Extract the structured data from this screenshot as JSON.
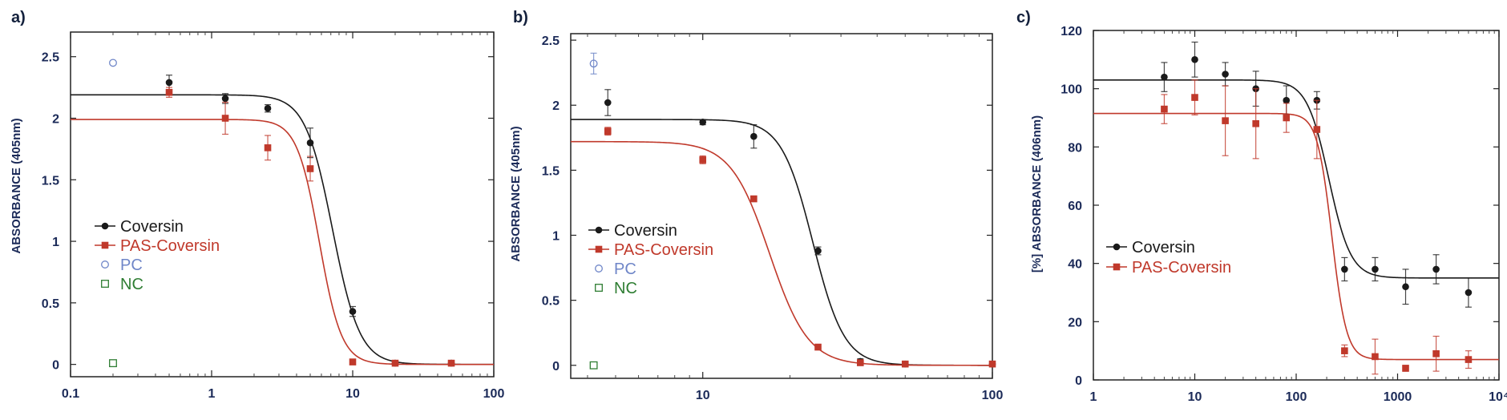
{
  "chart_data": [
    {
      "panel_label": "a)",
      "type": "scatter",
      "ylabel": "ABSORBANCE (405nm)",
      "xscale": "log",
      "xlim": [
        0.1,
        100
      ],
      "ylim": [
        -0.1,
        2.7
      ],
      "xticks": [
        0.1,
        1,
        10,
        100
      ],
      "xtick_labels": [
        "0.1",
        "1",
        "10",
        "100"
      ],
      "yticks": [
        0,
        0.5,
        1,
        1.5,
        2,
        2.5
      ],
      "ytick_labels": [
        "0",
        "0.5",
        "1",
        "1.5",
        "2",
        "2.5"
      ],
      "legend_position": "bottom-left",
      "series": [
        {
          "name": "Coversin",
          "color": "#1a1a1a",
          "marker": "circle",
          "points": [
            [
              0.5,
              2.29,
              0.06
            ],
            [
              1.25,
              2.16,
              0.04
            ],
            [
              2.5,
              2.08,
              0.03
            ],
            [
              5,
              1.8,
              0.12
            ],
            [
              10,
              0.43,
              0.04
            ],
            [
              20,
              0.01,
              0.02
            ],
            [
              50,
              0.01,
              0.02
            ]
          ],
          "fit": {
            "top": 2.19,
            "bottom": 0.0,
            "ec50": 7.2,
            "hill": 4.5
          }
        },
        {
          "name": "PAS-Coversin",
          "color": "#c0392b",
          "marker": "square",
          "points": [
            [
              0.5,
              2.21,
              0.04
            ],
            [
              1.25,
              2.0,
              0.13
            ],
            [
              2.5,
              1.76,
              0.1
            ],
            [
              5,
              1.59,
              0.1
            ],
            [
              10,
              0.02,
              0.02
            ],
            [
              20,
              0.01,
              0.02
            ],
            [
              50,
              0.01,
              0.02
            ]
          ],
          "fit": {
            "top": 1.99,
            "bottom": 0.0,
            "ec50": 5.8,
            "hill": 5.5
          }
        },
        {
          "name": "PC",
          "color": "#6f86c8",
          "marker": "open-circle",
          "points": [
            [
              0.2,
              2.45,
              0
            ]
          ]
        },
        {
          "name": "NC",
          "color": "#2e7d32",
          "marker": "open-square",
          "points": [
            [
              0.2,
              0.01,
              0
            ]
          ]
        }
      ]
    },
    {
      "panel_label": "b)",
      "type": "scatter",
      "ylabel": "ABSORBANCE (405nm)",
      "xscale": "log",
      "xlim": [
        3.5,
        100
      ],
      "ylim": [
        -0.1,
        2.55
      ],
      "xticks": [
        10,
        100
      ],
      "xtick_labels": [
        "10",
        "100"
      ],
      "yticks": [
        0,
        0.5,
        1,
        1.5,
        2,
        2.5
      ],
      "ytick_labels": [
        "0",
        "0.5",
        "1",
        "1.5",
        "2",
        "2.5"
      ],
      "legend_position": "bottom-left",
      "series": [
        {
          "name": "Coversin",
          "color": "#1a1a1a",
          "marker": "circle",
          "points": [
            [
              4.7,
              2.02,
              0.1
            ],
            [
              10,
              1.87,
              0.02
            ],
            [
              15,
              1.76,
              0.09
            ],
            [
              25,
              0.88,
              0.03
            ],
            [
              35,
              0.03,
              0.02
            ],
            [
              50,
              0.01,
              0.02
            ],
            [
              100,
              0.01,
              0.02
            ]
          ],
          "fit": {
            "top": 1.89,
            "bottom": 0.0,
            "ec50": 24,
            "hill": 8
          }
        },
        {
          "name": "PAS-Coversin",
          "color": "#c0392b",
          "marker": "square",
          "points": [
            [
              4.7,
              1.8,
              0.03
            ],
            [
              10,
              1.58,
              0.03
            ],
            [
              15,
              1.28,
              0.02
            ],
            [
              25,
              0.14,
              0.02
            ],
            [
              35,
              0.02,
              0.02
            ],
            [
              50,
              0.01,
              0.02
            ],
            [
              100,
              0.01,
              0.02
            ]
          ],
          "fit": {
            "top": 1.72,
            "bottom": 0.0,
            "ec50": 17,
            "hill": 6.5
          }
        },
        {
          "name": "PC",
          "color": "#6f86c8",
          "marker": "open-circle",
          "points": [
            [
              4.2,
              2.32,
              0.08
            ]
          ]
        },
        {
          "name": "NC",
          "color": "#2e7d32",
          "marker": "open-square",
          "points": [
            [
              4.2,
              0.0,
              0
            ]
          ]
        }
      ]
    },
    {
      "panel_label": "c)",
      "type": "scatter",
      "ylabel": "[%] ABSORBANCE (406nm)",
      "xscale": "log",
      "xlim": [
        1,
        10000
      ],
      "ylim": [
        0,
        120
      ],
      "xticks": [
        1,
        10,
        100,
        1000,
        10000
      ],
      "xtick_labels": [
        "1",
        "10",
        "100",
        "1000",
        "10⁴"
      ],
      "yticks": [
        0,
        20,
        40,
        60,
        80,
        100,
        120
      ],
      "ytick_labels": [
        "0",
        "20",
        "40",
        "60",
        "80",
        "100",
        "120"
      ],
      "legend_position": "bottom-left",
      "series": [
        {
          "name": "Coversin",
          "color": "#1a1a1a",
          "marker": "circle",
          "points": [
            [
              5,
              104,
              5
            ],
            [
              10,
              110,
              6
            ],
            [
              20,
              105,
              4
            ],
            [
              40,
              100,
              6
            ],
            [
              80,
              96,
              5
            ],
            [
              160,
              96,
              3
            ],
            [
              300,
              38,
              4
            ],
            [
              600,
              38,
              4
            ],
            [
              1200,
              32,
              6
            ],
            [
              2400,
              38,
              5
            ],
            [
              5000,
              30,
              5
            ]
          ],
          "fit": {
            "top": 103,
            "bottom": 35,
            "ec50": 210,
            "hill": 4
          }
        },
        {
          "name": "PAS-Coversin",
          "color": "#c0392b",
          "marker": "square",
          "points": [
            [
              5,
              93,
              5
            ],
            [
              10,
              97,
              6
            ],
            [
              20,
              89,
              12
            ],
            [
              40,
              88,
              12
            ],
            [
              80,
              90,
              5
            ],
            [
              160,
              86,
              10
            ],
            [
              300,
              10,
              2
            ],
            [
              600,
              8,
              6
            ],
            [
              1200,
              4,
              1
            ],
            [
              2400,
              9,
              6
            ],
            [
              5000,
              7,
              3
            ]
          ],
          "fit": {
            "top": 91.5,
            "bottom": 7,
            "ec50": 225,
            "hill": 6
          }
        }
      ]
    }
  ]
}
